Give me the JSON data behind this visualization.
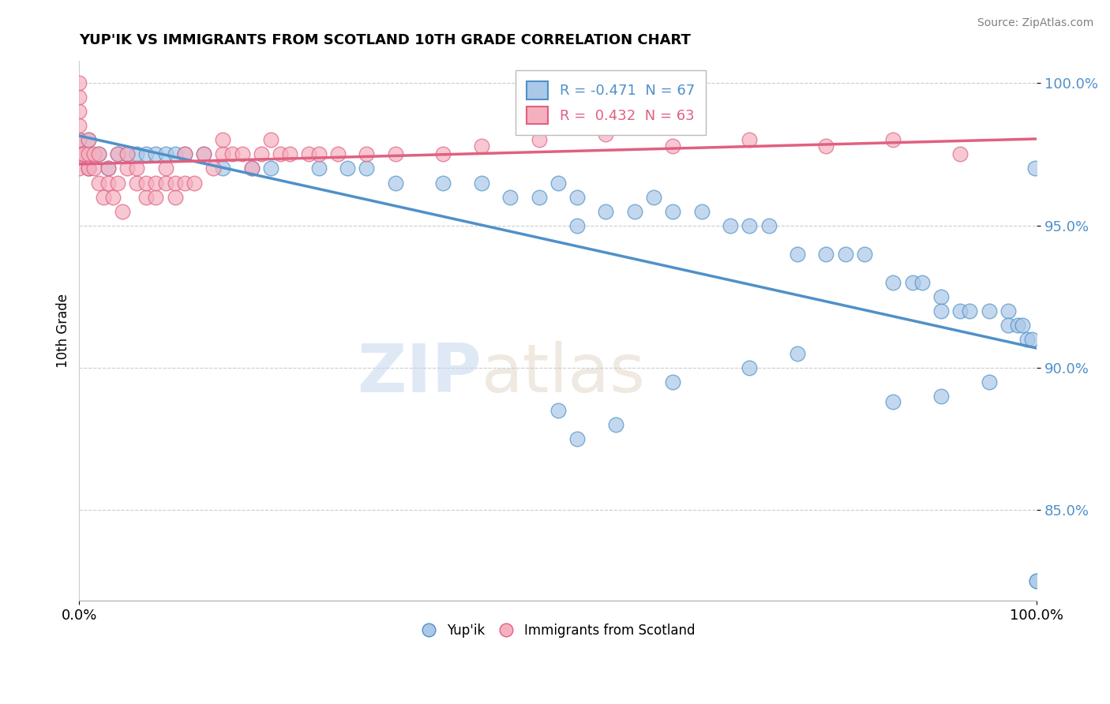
{
  "title": "YUP'IK VS IMMIGRANTS FROM SCOTLAND 10TH GRADE CORRELATION CHART",
  "source": "Source: ZipAtlas.com",
  "xlabel": "",
  "ylabel": "10th Grade",
  "watermark_zip": "ZIP",
  "watermark_atlas": "atlas",
  "xlim": [
    0.0,
    1.0
  ],
  "ylim": [
    0.818,
    1.008
  ],
  "yticks": [
    0.85,
    0.9,
    0.95,
    1.0
  ],
  "ytick_labels": [
    "85.0%",
    "90.0%",
    "95.0%",
    "100.0%"
  ],
  "xtick_labels": [
    "0.0%",
    "100.0%"
  ],
  "xticks": [
    0.0,
    1.0
  ],
  "legend_r1_r": "R = ",
  "legend_r1_val": "-0.471",
  "legend_r1_n": "  N = 67",
  "legend_r2_r": "R =  ",
  "legend_r2_val": "0.432",
  "legend_r2_n": "  N = 63",
  "blue_color": "#aac8e8",
  "pink_color": "#f5b0c0",
  "blue_line_color": "#5090c8",
  "pink_line_color": "#e06080",
  "blue_scatter_x": [
    0.0,
    0.0,
    0.01,
    0.01,
    0.02,
    0.03,
    0.04,
    0.05,
    0.06,
    0.07,
    0.08,
    0.09,
    0.1,
    0.11,
    0.13,
    0.15,
    0.18,
    0.2,
    0.25,
    0.28,
    0.3,
    0.33,
    0.38,
    0.42,
    0.45,
    0.48,
    0.5,
    0.52,
    0.52,
    0.55,
    0.58,
    0.6,
    0.62,
    0.65,
    0.68,
    0.7,
    0.72,
    0.75,
    0.78,
    0.8,
    0.82,
    0.85,
    0.87,
    0.88,
    0.9,
    0.9,
    0.92,
    0.93,
    0.95,
    0.97,
    0.97,
    0.98,
    0.985,
    0.99,
    0.995,
    0.998,
    1.0,
    0.5,
    0.52,
    0.56,
    0.62,
    0.7,
    0.75,
    0.85,
    0.9,
    0.95,
    1.0
  ],
  "blue_scatter_y": [
    0.975,
    0.98,
    0.97,
    0.98,
    0.975,
    0.97,
    0.975,
    0.975,
    0.975,
    0.975,
    0.975,
    0.975,
    0.975,
    0.975,
    0.975,
    0.97,
    0.97,
    0.97,
    0.97,
    0.97,
    0.97,
    0.965,
    0.965,
    0.965,
    0.96,
    0.96,
    0.965,
    0.96,
    0.95,
    0.955,
    0.955,
    0.96,
    0.955,
    0.955,
    0.95,
    0.95,
    0.95,
    0.94,
    0.94,
    0.94,
    0.94,
    0.93,
    0.93,
    0.93,
    0.925,
    0.92,
    0.92,
    0.92,
    0.92,
    0.92,
    0.915,
    0.915,
    0.915,
    0.91,
    0.91,
    0.97,
    0.825,
    0.885,
    0.875,
    0.88,
    0.895,
    0.9,
    0.905,
    0.888,
    0.89,
    0.895,
    0.825
  ],
  "pink_scatter_x": [
    0.0,
    0.0,
    0.0,
    0.0,
    0.0,
    0.0,
    0.0,
    0.005,
    0.01,
    0.01,
    0.01,
    0.01,
    0.015,
    0.015,
    0.02,
    0.02,
    0.025,
    0.03,
    0.03,
    0.035,
    0.04,
    0.04,
    0.045,
    0.05,
    0.05,
    0.06,
    0.06,
    0.07,
    0.07,
    0.08,
    0.08,
    0.09,
    0.09,
    0.1,
    0.1,
    0.11,
    0.11,
    0.12,
    0.13,
    0.14,
    0.15,
    0.15,
    0.16,
    0.17,
    0.18,
    0.19,
    0.2,
    0.21,
    0.22,
    0.24,
    0.25,
    0.27,
    0.3,
    0.33,
    0.38,
    0.42,
    0.48,
    0.55,
    0.62,
    0.7,
    0.78,
    0.85,
    0.92
  ],
  "pink_scatter_y": [
    0.97,
    0.975,
    0.98,
    0.985,
    0.99,
    0.995,
    1.0,
    0.975,
    0.97,
    0.975,
    0.98,
    0.97,
    0.97,
    0.975,
    0.965,
    0.975,
    0.96,
    0.965,
    0.97,
    0.96,
    0.965,
    0.975,
    0.955,
    0.975,
    0.97,
    0.965,
    0.97,
    0.96,
    0.965,
    0.96,
    0.965,
    0.965,
    0.97,
    0.96,
    0.965,
    0.965,
    0.975,
    0.965,
    0.975,
    0.97,
    0.975,
    0.98,
    0.975,
    0.975,
    0.97,
    0.975,
    0.98,
    0.975,
    0.975,
    0.975,
    0.975,
    0.975,
    0.975,
    0.975,
    0.975,
    0.978,
    0.98,
    0.982,
    0.978,
    0.98,
    0.978,
    0.98,
    0.975
  ]
}
